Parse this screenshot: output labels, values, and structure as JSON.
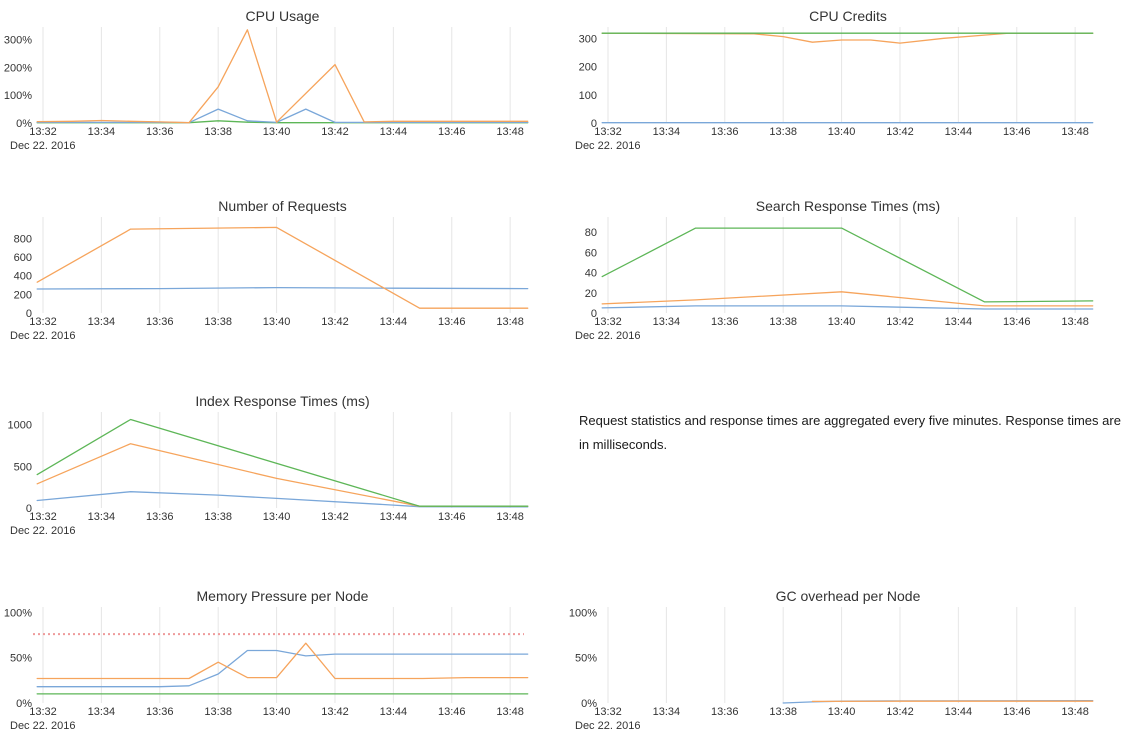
{
  "palette": {
    "blue": "#7aa7d9",
    "orange": "#f6a45c",
    "green": "#5db657",
    "red": "#ee9a9a",
    "grid": "#e6e6e6",
    "text": "#333333"
  },
  "x_axis": {
    "domain": [
      31.76,
      48.68
    ],
    "tick_minutes": [
      32,
      34,
      36,
      38,
      40,
      42,
      44,
      46,
      48
    ],
    "tick_labels": [
      "13:32",
      "13:34",
      "13:36",
      "13:38",
      "13:40",
      "13:42",
      "13:44",
      "13:46",
      "13:48"
    ],
    "date_label": "Dec 22. 2016"
  },
  "note": {
    "text": "Request statistics and response times are aggregated every five minutes. Response times are in milliseconds."
  },
  "chart_data": [
    {
      "id": "cpu-usage",
      "type": "line",
      "title": "CPU Usage",
      "ylim": [
        0,
        345
      ],
      "yticks": [
        0,
        100,
        200,
        300
      ],
      "ytick_labels": [
        "0%",
        "100%",
        "200%",
        "300%"
      ],
      "grid": "vertical-only",
      "legend": "none",
      "series": [
        {
          "name": "series-green",
          "color": "green",
          "points": [
            [
              31.8,
              1
            ],
            [
              37,
              1
            ],
            [
              38,
              8
            ],
            [
              39,
              3
            ],
            [
              40,
              1
            ],
            [
              48.6,
              1
            ]
          ]
        },
        {
          "name": "series-blue",
          "color": "blue",
          "points": [
            [
              31.8,
              2
            ],
            [
              36.5,
              2
            ],
            [
              37,
              1
            ],
            [
              38,
              50
            ],
            [
              39,
              8
            ],
            [
              40,
              2
            ],
            [
              41,
              50
            ],
            [
              42,
              2
            ],
            [
              43,
              2
            ],
            [
              48.6,
              2
            ]
          ]
        },
        {
          "name": "series-orange",
          "color": "orange",
          "points": [
            [
              31.8,
              5
            ],
            [
              33,
              6
            ],
            [
              34,
              9
            ],
            [
              35,
              6
            ],
            [
              36,
              4
            ],
            [
              37,
              1
            ],
            [
              38,
              130
            ],
            [
              39,
              335
            ],
            [
              40,
              3
            ],
            [
              42,
              210
            ],
            [
              43,
              4
            ],
            [
              44,
              6
            ],
            [
              48.6,
              6
            ]
          ]
        }
      ]
    },
    {
      "id": "cpu-credits",
      "type": "line",
      "title": "CPU Credits",
      "ylim": [
        0,
        340
      ],
      "yticks": [
        0,
        100,
        200,
        300
      ],
      "ytick_labels": [
        "0",
        "100",
        "200",
        "300"
      ],
      "grid": "vertical-only",
      "legend": "none",
      "series": [
        {
          "name": "series-blue",
          "color": "blue",
          "points": [
            [
              31.8,
              1
            ],
            [
              48.6,
              1
            ]
          ]
        },
        {
          "name": "series-orange",
          "color": "orange",
          "points": [
            [
              31.8,
              318
            ],
            [
              37,
              316
            ],
            [
              38,
              306
            ],
            [
              39,
              286
            ],
            [
              40,
              294
            ],
            [
              41,
              294
            ],
            [
              42,
              283
            ],
            [
              43.5,
              300
            ],
            [
              45,
              312
            ],
            [
              45.7,
              318
            ],
            [
              48.6,
              318
            ]
          ]
        },
        {
          "name": "series-green",
          "color": "green",
          "points": [
            [
              31.8,
              318
            ],
            [
              48.6,
              318
            ]
          ]
        }
      ]
    },
    {
      "id": "number-of-requests",
      "type": "line",
      "title": "Number of Requests",
      "ylim": [
        0,
        1030
      ],
      "yticks": [
        0,
        200,
        400,
        600,
        800
      ],
      "ytick_labels": [
        "0",
        "200",
        "400",
        "600",
        "800"
      ],
      "grid": "vertical-only",
      "legend": "none",
      "series": [
        {
          "name": "series-blue",
          "color": "blue",
          "points": [
            [
              31.8,
              258
            ],
            [
              36,
              262
            ],
            [
              40,
              272
            ],
            [
              44,
              266
            ],
            [
              48.6,
              262
            ]
          ]
        },
        {
          "name": "series-orange",
          "color": "orange",
          "points": [
            [
              31.8,
              330
            ],
            [
              35,
              900
            ],
            [
              40,
              918
            ],
            [
              44.9,
              52
            ],
            [
              48.6,
              52
            ]
          ]
        }
      ]
    },
    {
      "id": "search-response-times",
      "type": "line",
      "title": "Search Response Times (ms)",
      "ylim": [
        0,
        95
      ],
      "yticks": [
        0,
        20,
        40,
        60,
        80
      ],
      "ytick_labels": [
        "0",
        "20",
        "40",
        "60",
        "80"
      ],
      "grid": "vertical-only",
      "legend": "none",
      "series": [
        {
          "name": "series-blue",
          "color": "blue",
          "points": [
            [
              31.8,
              5
            ],
            [
              35,
              7
            ],
            [
              40,
              7
            ],
            [
              44.9,
              4
            ],
            [
              48.6,
              4
            ]
          ]
        },
        {
          "name": "series-orange",
          "color": "orange",
          "points": [
            [
              31.8,
              9
            ],
            [
              35,
              13
            ],
            [
              40,
              21
            ],
            [
              44.9,
              7
            ],
            [
              48.6,
              7
            ]
          ]
        },
        {
          "name": "series-green",
          "color": "green",
          "points": [
            [
              31.8,
              36
            ],
            [
              35,
              84
            ],
            [
              40,
              84
            ],
            [
              44.9,
              11
            ],
            [
              48.6,
              12
            ]
          ]
        }
      ]
    },
    {
      "id": "index-response-times",
      "type": "line",
      "title": "Index Response Times (ms)",
      "ylim": [
        0,
        1150
      ],
      "yticks": [
        0,
        500,
        1000
      ],
      "ytick_labels": [
        "0",
        "500",
        "1000"
      ],
      "grid": "vertical-only",
      "legend": "none",
      "series": [
        {
          "name": "series-blue",
          "color": "blue",
          "points": [
            [
              31.8,
              90
            ],
            [
              35,
              195
            ],
            [
              38,
              155
            ],
            [
              40,
              115
            ],
            [
              44,
              35
            ],
            [
              44.9,
              15
            ],
            [
              48.6,
              13
            ]
          ]
        },
        {
          "name": "series-orange",
          "color": "orange",
          "points": [
            [
              31.8,
              290
            ],
            [
              35,
              770
            ],
            [
              40,
              355
            ],
            [
              44.9,
              22
            ],
            [
              48.6,
              22
            ]
          ]
        },
        {
          "name": "series-green",
          "color": "green",
          "points": [
            [
              31.8,
              400
            ],
            [
              35,
              1060
            ],
            [
              44.9,
              22
            ],
            [
              48.6,
              22
            ]
          ]
        }
      ]
    },
    {
      "id": "memory-pressure",
      "type": "line",
      "title": "Memory Pressure per Node",
      "ylim": [
        0,
        106
      ],
      "yticks": [
        0,
        50,
        100
      ],
      "ytick_labels": [
        "0%",
        "50%",
        "100%"
      ],
      "grid": "vertical-only",
      "legend": "none",
      "threshold": {
        "value": 76,
        "color": "red",
        "style": "dotted"
      },
      "series": [
        {
          "name": "series-green",
          "color": "green",
          "points": [
            [
              31.8,
              10
            ],
            [
              48.6,
              10
            ]
          ]
        },
        {
          "name": "series-blue",
          "color": "blue",
          "points": [
            [
              31.8,
              18
            ],
            [
              36,
              18
            ],
            [
              37,
              19
            ],
            [
              38,
              32
            ],
            [
              39,
              58
            ],
            [
              40,
              58
            ],
            [
              41,
              52
            ],
            [
              42,
              54
            ],
            [
              48.6,
              54
            ]
          ]
        },
        {
          "name": "series-orange",
          "color": "orange",
          "points": [
            [
              31.8,
              27
            ],
            [
              37,
              27
            ],
            [
              38,
              45
            ],
            [
              39,
              28
            ],
            [
              40,
              28
            ],
            [
              41,
              66
            ],
            [
              42,
              27
            ],
            [
              45,
              27
            ],
            [
              46.5,
              28
            ],
            [
              48.6,
              28
            ]
          ]
        }
      ]
    },
    {
      "id": "gc-overhead",
      "type": "line",
      "title": "GC overhead per Node",
      "ylim": [
        0,
        106
      ],
      "yticks": [
        0,
        50,
        100
      ],
      "ytick_labels": [
        "0%",
        "50%",
        "100%"
      ],
      "grid": "vertical-only",
      "legend": "none",
      "series": [
        {
          "name": "series-blue",
          "color": "blue",
          "points": [
            [
              38,
              0
            ],
            [
              39,
              1.2
            ],
            [
              40,
              2
            ],
            [
              42,
              2.3
            ],
            [
              48.6,
              2.6
            ]
          ]
        },
        {
          "name": "series-orange",
          "color": "orange",
          "points": [
            [
              39,
              1.8
            ],
            [
              42,
              2
            ],
            [
              48.6,
              2
            ]
          ]
        }
      ]
    }
  ]
}
